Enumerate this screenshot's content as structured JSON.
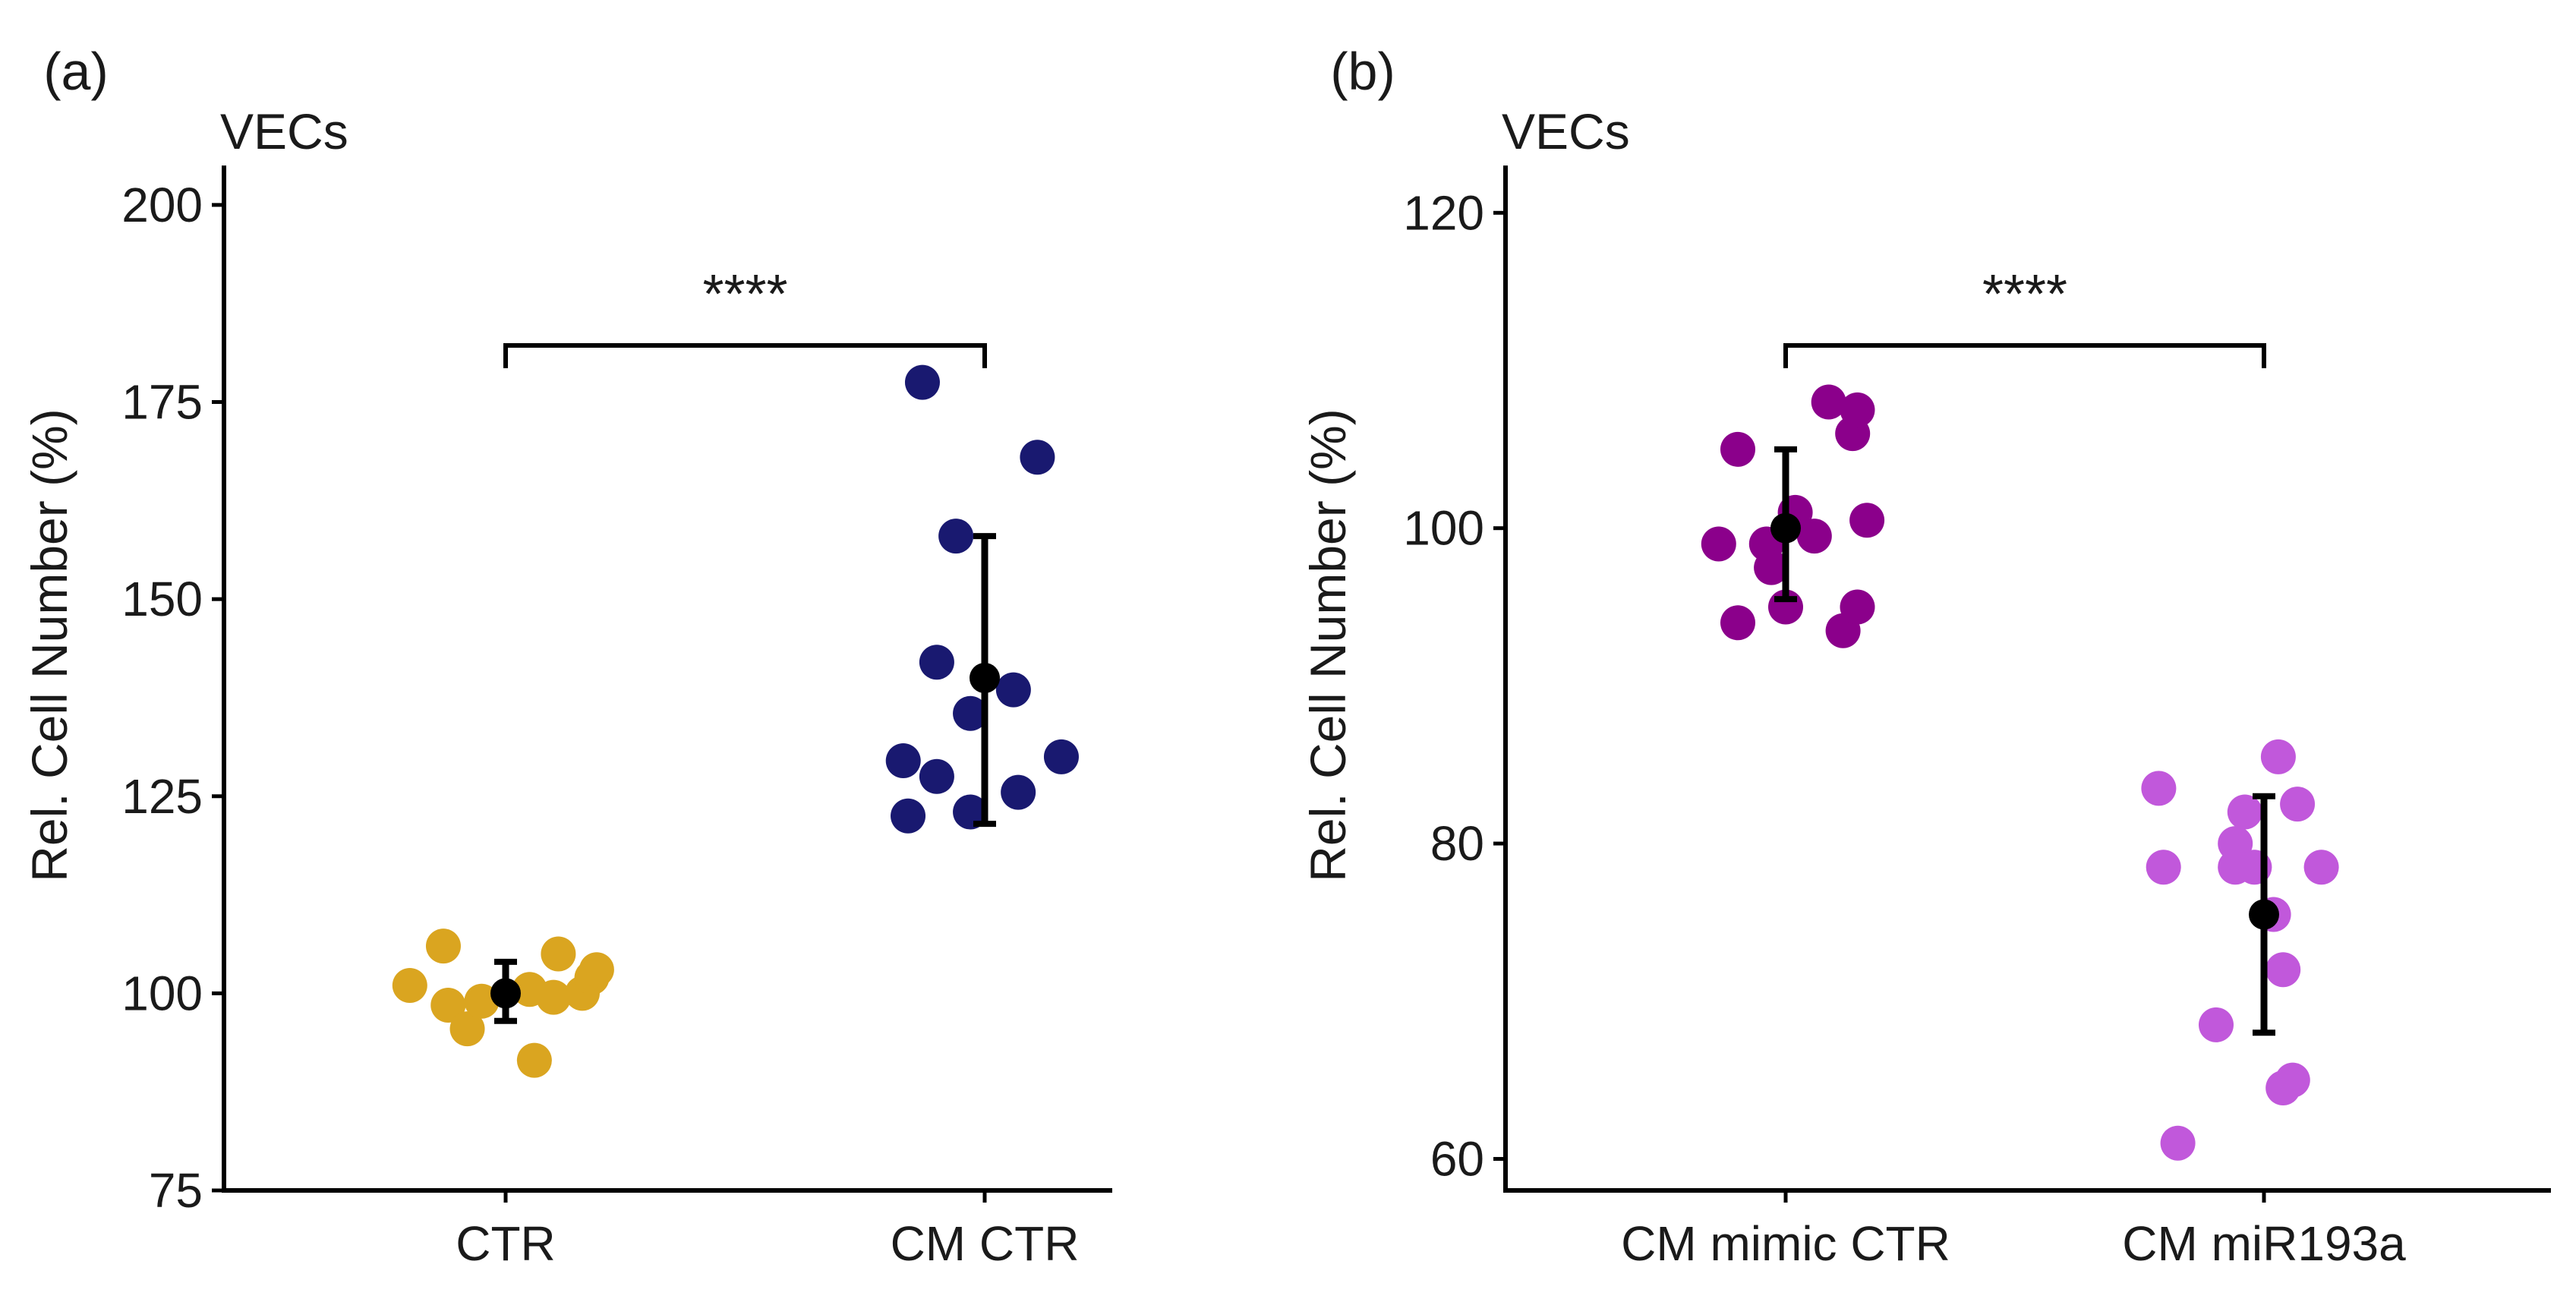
{
  "chart_data": [
    {
      "panel_label": "(a)",
      "type": "scatter",
      "title": "VECs",
      "xlabel": "",
      "ylabel": "Rel. Cell Number (%)",
      "ylim": [
        75,
        205
      ],
      "yticks": [
        75,
        100,
        125,
        150,
        175,
        200
      ],
      "categories": [
        "CTR",
        "CM CTR"
      ],
      "groups": [
        {
          "name": "CTR",
          "color": "#DAA520",
          "points": [
            {
              "offset": -0.2,
              "y": 101
            },
            {
              "offset": -0.13,
              "y": 106
            },
            {
              "offset": -0.12,
              "y": 98.5
            },
            {
              "offset": -0.08,
              "y": 95.5
            },
            {
              "offset": -0.05,
              "y": 99
            },
            {
              "offset": 0.05,
              "y": 100.5
            },
            {
              "offset": 0.06,
              "y": 91.5
            },
            {
              "offset": 0.1,
              "y": 99.5
            },
            {
              "offset": 0.11,
              "y": 105
            },
            {
              "offset": 0.16,
              "y": 100
            },
            {
              "offset": 0.18,
              "y": 102
            },
            {
              "offset": 0.19,
              "y": 103
            }
          ],
          "mean": 100,
          "error": [
            96.5,
            104
          ]
        },
        {
          "name": "CM CTR",
          "color": "#191970",
          "points": [
            {
              "offset": -0.17,
              "y": 129.5
            },
            {
              "offset": -0.16,
              "y": 122.5
            },
            {
              "offset": -0.13,
              "y": 177.5
            },
            {
              "offset": -0.1,
              "y": 127.5
            },
            {
              "offset": -0.06,
              "y": 158
            },
            {
              "offset": -0.1,
              "y": 142
            },
            {
              "offset": -0.03,
              "y": 123
            },
            {
              "offset": -0.03,
              "y": 135.5
            },
            {
              "offset": 0.06,
              "y": 138.5
            },
            {
              "offset": 0.07,
              "y": 125.5
            },
            {
              "offset": 0.11,
              "y": 168
            },
            {
              "offset": 0.16,
              "y": 130
            }
          ],
          "mean": 140,
          "error": [
            121.5,
            158
          ]
        }
      ],
      "significance": {
        "from": "CTR",
        "to": "CM CTR",
        "label": "****"
      }
    },
    {
      "panel_label": "(b)",
      "type": "scatter",
      "title": "VECs",
      "xlabel": "",
      "ylabel": "Rel. Cell Number (%)",
      "ylim": [
        58,
        123
      ],
      "yticks": [
        60,
        80,
        100,
        120
      ],
      "categories": [
        "CM mimic CTR",
        "CM miR193a"
      ],
      "groups": [
        {
          "name": "CM mimic CTR",
          "color": "#8B008B",
          "points": [
            {
              "offset": -0.14,
              "y": 99
            },
            {
              "offset": -0.1,
              "y": 105
            },
            {
              "offset": -0.1,
              "y": 94
            },
            {
              "offset": -0.04,
              "y": 99
            },
            {
              "offset": -0.03,
              "y": 97.5
            },
            {
              "offset": 0.0,
              "y": 95
            },
            {
              "offset": 0.02,
              "y": 101
            },
            {
              "offset": 0.06,
              "y": 99.5
            },
            {
              "offset": 0.09,
              "y": 108
            },
            {
              "offset": 0.12,
              "y": 93.5
            },
            {
              "offset": 0.14,
              "y": 106
            },
            {
              "offset": 0.15,
              "y": 95
            },
            {
              "offset": 0.15,
              "y": 107.5
            },
            {
              "offset": 0.17,
              "y": 100.5
            }
          ],
          "mean": 100,
          "error": [
            95.5,
            105
          ]
        },
        {
          "name": "CM miR193a",
          "color": "#C158DB",
          "points": [
            {
              "offset": -0.22,
              "y": 83.5
            },
            {
              "offset": -0.21,
              "y": 78.5
            },
            {
              "offset": -0.18,
              "y": 61
            },
            {
              "offset": -0.1,
              "y": 68.5
            },
            {
              "offset": -0.06,
              "y": 80
            },
            {
              "offset": -0.06,
              "y": 78.5
            },
            {
              "offset": -0.02,
              "y": 78.5
            },
            {
              "offset": -0.04,
              "y": 82
            },
            {
              "offset": 0.03,
              "y": 85.5
            },
            {
              "offset": 0.02,
              "y": 75.5
            },
            {
              "offset": 0.04,
              "y": 72
            },
            {
              "offset": 0.04,
              "y": 64.5
            },
            {
              "offset": 0.06,
              "y": 65
            },
            {
              "offset": 0.07,
              "y": 82.5
            },
            {
              "offset": 0.12,
              "y": 78.5
            }
          ],
          "mean": 75.5,
          "error": [
            68,
            83
          ]
        }
      ],
      "significance": {
        "from": "CM mimic CTR",
        "to": "CM miR193a",
        "label": "****"
      }
    }
  ]
}
